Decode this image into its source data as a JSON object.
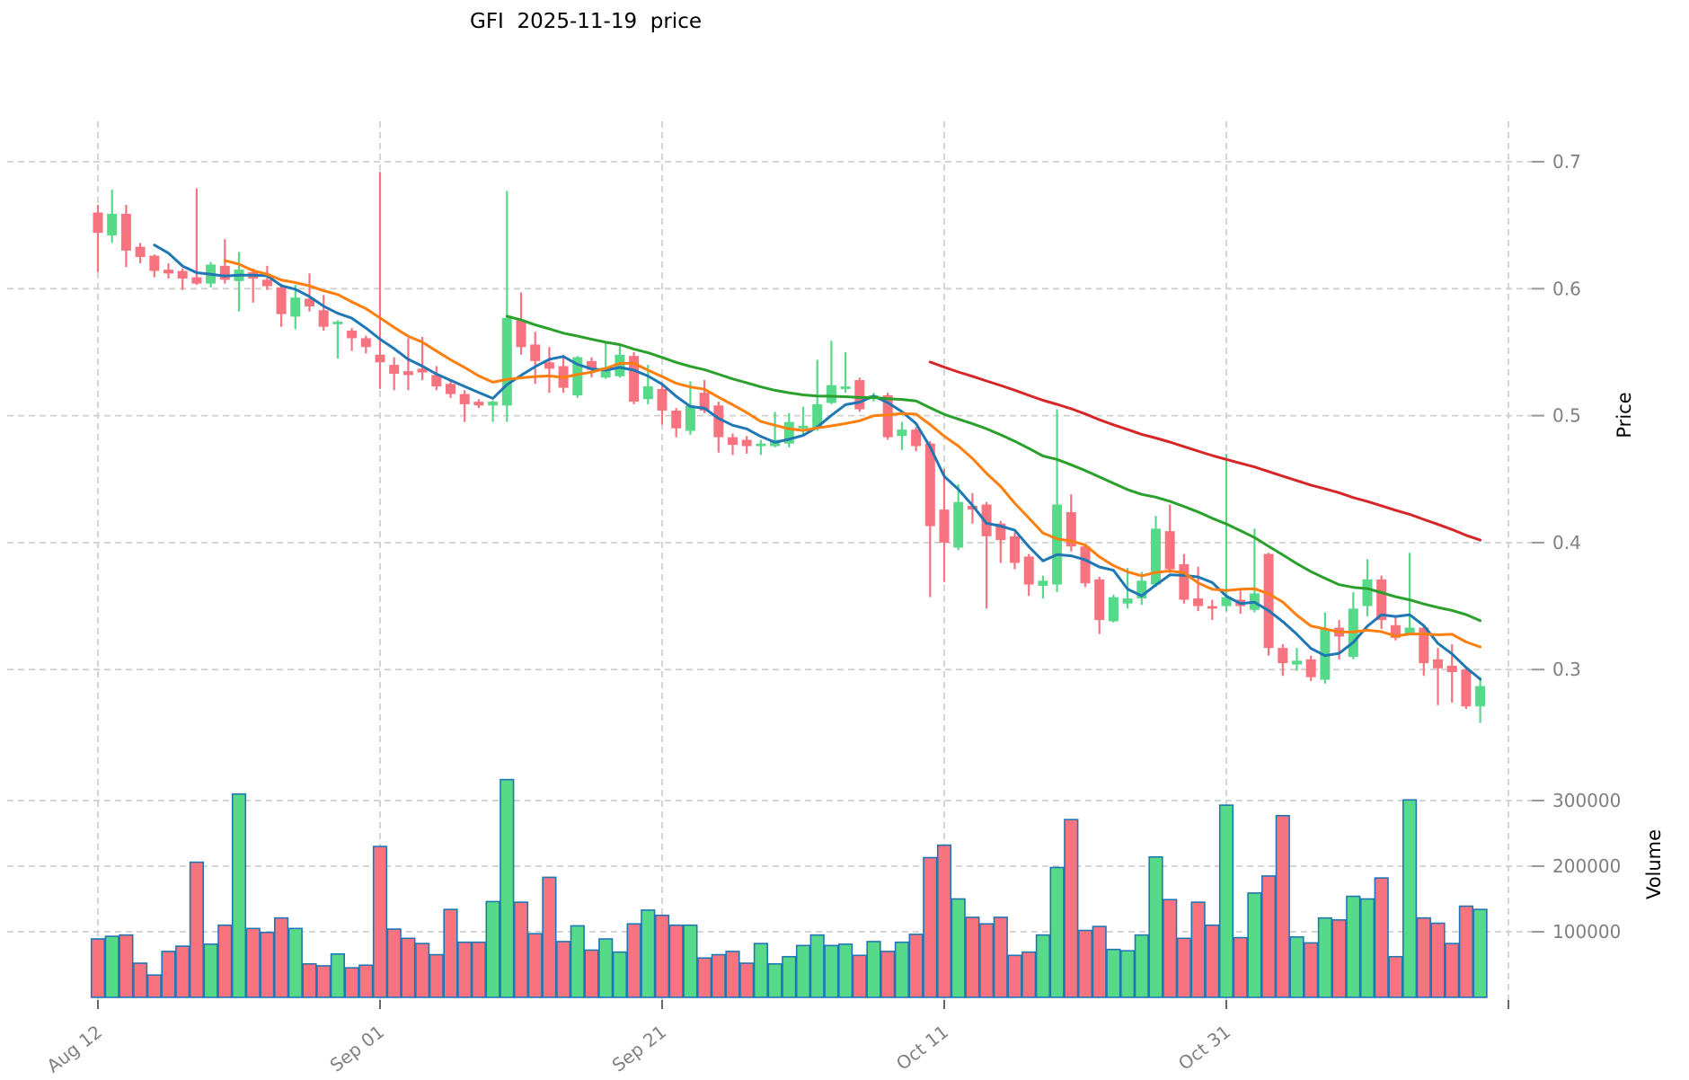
{
  "title": "GFI  2025-11-19  price",
  "chart_data": {
    "type": "candlestick",
    "title": "GFI  2025-11-19  price",
    "price_axis": {
      "label": "Price",
      "ticks": [
        "0.7",
        "0.6",
        "0.5",
        "0.4",
        "0.3"
      ],
      "tick_values": [
        0.7,
        0.6,
        0.5,
        0.4,
        0.3
      ],
      "ylim": [
        0.252,
        0.715
      ]
    },
    "volume_axis": {
      "label": "Volume",
      "ticks": [
        "300000",
        "200000",
        "100000"
      ],
      "tick_values": [
        300000,
        200000,
        100000
      ],
      "ylim": [
        0,
        560000
      ]
    },
    "x_axis": {
      "ticks": [
        {
          "index": 0,
          "label": "Aug 12"
        },
        {
          "index": 20,
          "label": "Sep 01"
        },
        {
          "index": 40,
          "label": "Sep 21"
        },
        {
          "index": 60,
          "label": "Oct 11"
        },
        {
          "index": 80,
          "label": "Oct 31"
        },
        {
          "index": 100,
          "label": ""
        }
      ],
      "grid": true
    },
    "series": {
      "open": [
        0.66,
        0.642,
        0.659,
        0.633,
        0.626,
        0.615,
        0.614,
        0.609,
        0.604,
        0.618,
        0.606,
        0.613,
        0.607,
        0.601,
        0.578,
        0.592,
        0.583,
        0.572,
        0.567,
        0.561,
        0.548,
        0.54,
        0.535,
        0.537,
        0.532,
        0.525,
        0.517,
        0.511,
        0.508,
        0.508,
        0.575,
        0.556,
        0.542,
        0.539,
        0.516,
        0.543,
        0.53,
        0.531,
        0.547,
        0.513,
        0.521,
        0.504,
        0.488,
        0.518,
        0.508,
        0.483,
        0.481,
        0.476,
        0.476,
        0.478,
        0.49,
        0.49,
        0.51,
        0.521,
        0.528,
        0.513,
        0.516,
        0.484,
        0.489,
        0.478,
        0.426,
        0.396,
        0.429,
        0.43,
        0.415,
        0.405,
        0.389,
        0.366,
        0.367,
        0.424,
        0.397,
        0.371,
        0.338,
        0.352,
        0.356,
        0.367,
        0.409,
        0.383,
        0.356,
        0.35,
        0.35,
        0.355,
        0.347,
        0.391,
        0.317,
        0.304,
        0.308,
        0.292,
        0.333,
        0.31,
        0.35,
        0.371,
        0.335,
        0.328,
        0.333,
        0.308,
        0.303,
        0.3,
        0.271
      ],
      "high": [
        0.666,
        0.678,
        0.666,
        0.636,
        0.627,
        0.62,
        0.616,
        0.679,
        0.621,
        0.639,
        0.629,
        0.616,
        0.618,
        0.604,
        0.603,
        0.612,
        0.595,
        0.575,
        0.569,
        0.563,
        0.692,
        0.546,
        0.561,
        0.562,
        0.539,
        0.528,
        0.52,
        0.513,
        0.512,
        0.677,
        0.597,
        0.566,
        0.554,
        0.548,
        0.547,
        0.546,
        0.557,
        0.557,
        0.55,
        0.54,
        0.524,
        0.506,
        0.527,
        0.528,
        0.511,
        0.486,
        0.484,
        0.481,
        0.503,
        0.502,
        0.507,
        0.544,
        0.559,
        0.55,
        0.53,
        0.518,
        0.518,
        0.495,
        0.491,
        0.48,
        0.458,
        0.446,
        0.439,
        0.432,
        0.417,
        0.408,
        0.391,
        0.374,
        0.505,
        0.438,
        0.399,
        0.373,
        0.359,
        0.38,
        0.377,
        0.421,
        0.43,
        0.391,
        0.381,
        0.355,
        0.47,
        0.362,
        0.411,
        0.392,
        0.32,
        0.317,
        0.311,
        0.345,
        0.339,
        0.361,
        0.387,
        0.374,
        0.342,
        0.392,
        0.335,
        0.317,
        0.32,
        0.302,
        0.294
      ],
      "low": [
        0.613,
        0.636,
        0.617,
        0.62,
        0.609,
        0.608,
        0.599,
        0.603,
        0.601,
        0.604,
        0.582,
        0.589,
        0.599,
        0.57,
        0.568,
        0.582,
        0.567,
        0.545,
        0.551,
        0.549,
        0.521,
        0.52,
        0.52,
        0.528,
        0.52,
        0.514,
        0.495,
        0.506,
        0.495,
        0.495,
        0.548,
        0.525,
        0.518,
        0.518,
        0.514,
        0.53,
        0.529,
        0.53,
        0.509,
        0.509,
        0.493,
        0.483,
        0.485,
        0.502,
        0.471,
        0.469,
        0.47,
        0.469,
        0.475,
        0.475,
        0.484,
        0.488,
        0.509,
        0.518,
        0.503,
        0.511,
        0.481,
        0.473,
        0.472,
        0.357,
        0.369,
        0.394,
        0.415,
        0.348,
        0.384,
        0.379,
        0.358,
        0.356,
        0.361,
        0.393,
        0.365,
        0.328,
        0.337,
        0.348,
        0.351,
        0.365,
        0.376,
        0.352,
        0.346,
        0.339,
        0.346,
        0.344,
        0.345,
        0.311,
        0.295,
        0.299,
        0.291,
        0.289,
        0.308,
        0.308,
        0.342,
        0.332,
        0.323,
        0.327,
        0.295,
        0.272,
        0.274,
        0.269,
        0.258
      ],
      "close": [
        0.644,
        0.659,
        0.63,
        0.625,
        0.614,
        0.612,
        0.608,
        0.604,
        0.619,
        0.607,
        0.615,
        0.608,
        0.602,
        0.58,
        0.593,
        0.586,
        0.57,
        0.574,
        0.561,
        0.554,
        0.542,
        0.533,
        0.532,
        0.534,
        0.523,
        0.517,
        0.509,
        0.508,
        0.511,
        0.577,
        0.554,
        0.543,
        0.537,
        0.522,
        0.546,
        0.536,
        0.538,
        0.548,
        0.511,
        0.523,
        0.504,
        0.49,
        0.508,
        0.504,
        0.483,
        0.477,
        0.476,
        0.478,
        0.481,
        0.495,
        0.492,
        0.509,
        0.524,
        0.523,
        0.505,
        0.516,
        0.483,
        0.489,
        0.476,
        0.413,
        0.4,
        0.432,
        0.426,
        0.405,
        0.402,
        0.384,
        0.367,
        0.37,
        0.43,
        0.397,
        0.368,
        0.339,
        0.357,
        0.356,
        0.37,
        0.411,
        0.379,
        0.355,
        0.35,
        0.348,
        0.357,
        0.35,
        0.36,
        0.317,
        0.305,
        0.307,
        0.294,
        0.332,
        0.326,
        0.348,
        0.371,
        0.339,
        0.325,
        0.333,
        0.305,
        0.301,
        0.298,
        0.271,
        0.287
      ],
      "volume": [
        89000,
        93000,
        95000,
        52000,
        34000,
        70000,
        78000,
        206000,
        81000,
        110000,
        310000,
        105000,
        99000,
        121000,
        105000,
        51000,
        48000,
        66000,
        45000,
        49000,
        230000,
        104000,
        90000,
        82000,
        65000,
        134000,
        84000,
        84000,
        146000,
        332000,
        145000,
        97000,
        183000,
        85000,
        109000,
        72000,
        89000,
        69000,
        112000,
        133000,
        125000,
        110000,
        110000,
        60000,
        65000,
        70000,
        52000,
        82000,
        51000,
        62000,
        79000,
        95000,
        79000,
        81000,
        64000,
        85000,
        70000,
        84000,
        96000,
        213000,
        232000,
        150000,
        122000,
        112000,
        122000,
        64000,
        69000,
        95000,
        198000,
        271000,
        102000,
        108000,
        73000,
        71000,
        95000,
        214000,
        149000,
        90000,
        145000,
        110000,
        293000,
        91000,
        159000,
        185000,
        277000,
        92000,
        83000,
        121000,
        118000,
        154000,
        150000,
        182000,
        62000,
        301000,
        121000,
        113000,
        82000,
        139000,
        134000
      ]
    },
    "moving_averages": [
      {
        "name": "MA5",
        "window": 5,
        "color": "#1f77b4"
      },
      {
        "name": "MA10",
        "window": 10,
        "color": "#ff7f0e"
      },
      {
        "name": "MA30",
        "window": 30,
        "color": "#2ca02c"
      },
      {
        "name": "MA60",
        "window": 60,
        "color": "#d62728"
      }
    ],
    "colors": {
      "up": "#57d98a",
      "down": "#f7737f",
      "volume_edge": "#1f77b4",
      "grid": "#cfcfcf",
      "tick_label": "#808080",
      "axis_label": "#000000",
      "title": "#000000"
    },
    "legend": "none"
  }
}
